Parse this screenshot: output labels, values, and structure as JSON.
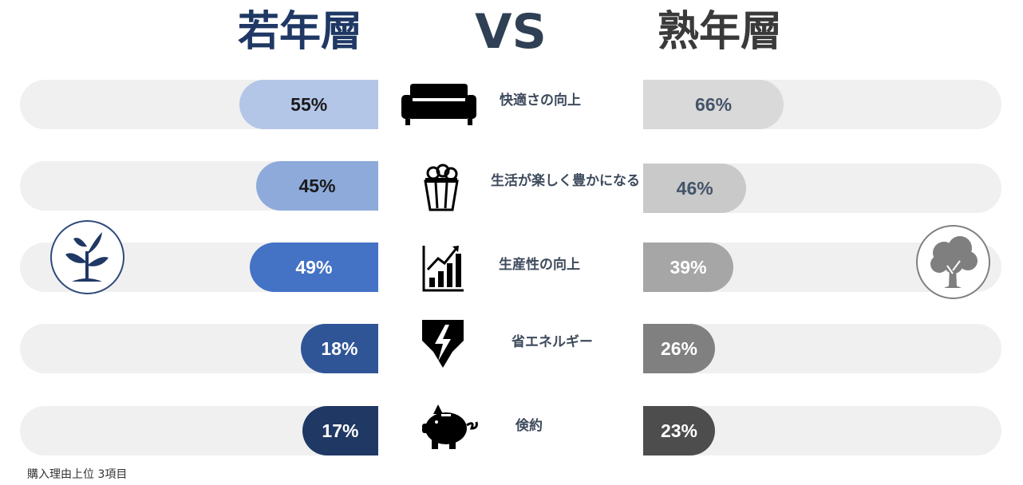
{
  "titles": {
    "left": "若年層",
    "middle": "VS",
    "right": "熟年層"
  },
  "colors": {
    "young": [
      "#b4c6e7",
      "#8eaadb",
      "#4472c4",
      "#2f5597",
      "#203864"
    ],
    "old": [
      "#d9d9d9",
      "#c9c9c9",
      "#a6a6a6",
      "#808080",
      "#4d4d4d"
    ],
    "young_text": [
      "#1a1a1a",
      "#1a1a1a",
      "#ffffff",
      "#ffffff",
      "#ffffff"
    ],
    "old_text": [
      "#44546a",
      "#44546a",
      "#ffffff",
      "#ffffff",
      "#ffffff"
    ]
  },
  "chart_data": {
    "type": "bar",
    "orientation": "horizontal-butterfly",
    "xlim": [
      0,
      100
    ],
    "categories": [
      "快適さの向上",
      "生活が楽しく豊かになる",
      "生産性の向上",
      "省エネルギー",
      "倹約"
    ],
    "series": [
      {
        "name": "若年層",
        "values": [
          55,
          45,
          49,
          18,
          17
        ],
        "labels": [
          "55%",
          "45%",
          "49%",
          "18%",
          "17%"
        ]
      },
      {
        "name": "熟年層",
        "values": [
          66,
          46,
          39,
          26,
          23
        ],
        "labels": [
          "66%",
          "46%",
          "39%",
          "26%",
          "23%"
        ]
      }
    ],
    "category_icons": [
      "sofa-icon",
      "popcorn-icon",
      "chart-growth-icon",
      "lightning-icon",
      "piggy-bank-icon"
    ]
  },
  "side_icons": {
    "left": "sprout-icon",
    "right": "tree-icon"
  },
  "footnote": "購入理由上位 3項目"
}
